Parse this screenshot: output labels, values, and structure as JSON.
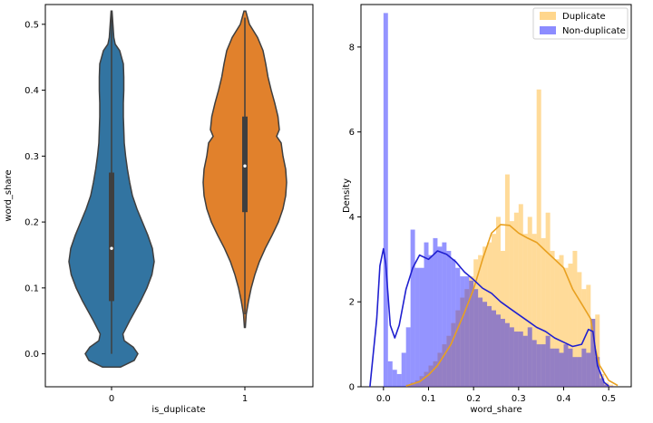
{
  "chart_data": [
    {
      "type": "violin",
      "xlabel": "is_duplicate",
      "ylabel": "word_share",
      "categories": [
        "0",
        "1"
      ],
      "ylim": [
        -0.05,
        0.53
      ],
      "yticks": [
        0.0,
        0.1,
        0.2,
        0.3,
        0.4,
        0.5
      ],
      "ytick_labels": [
        "0.0",
        "0.1",
        "0.2",
        "0.3",
        "0.4",
        "0.5"
      ],
      "series": [
        {
          "category": "0",
          "color": "#3274a1",
          "min": 0.0,
          "q1": 0.08,
          "median": 0.16,
          "q3": 0.275,
          "max": 0.52,
          "kde_range": [
            -0.02,
            0.52
          ],
          "profile": [
            [
              -0.02,
              0.2
            ],
            [
              -0.01,
              0.5
            ],
            [
              0.0,
              0.58
            ],
            [
              0.01,
              0.48
            ],
            [
              0.02,
              0.28
            ],
            [
              0.03,
              0.25
            ],
            [
              0.05,
              0.4
            ],
            [
              0.08,
              0.64
            ],
            [
              0.1,
              0.78
            ],
            [
              0.12,
              0.89
            ],
            [
              0.14,
              0.94
            ],
            [
              0.16,
              0.9
            ],
            [
              0.18,
              0.8
            ],
            [
              0.2,
              0.68
            ],
            [
              0.22,
              0.56
            ],
            [
              0.24,
              0.46
            ],
            [
              0.26,
              0.4
            ],
            [
              0.28,
              0.35
            ],
            [
              0.3,
              0.31
            ],
            [
              0.32,
              0.28
            ],
            [
              0.34,
              0.27
            ],
            [
              0.36,
              0.26
            ],
            [
              0.38,
              0.26
            ],
            [
              0.4,
              0.27
            ],
            [
              0.42,
              0.27
            ],
            [
              0.44,
              0.26
            ],
            [
              0.46,
              0.18
            ],
            [
              0.47,
              0.08
            ],
            [
              0.48,
              0.05
            ],
            [
              0.5,
              0.03
            ],
            [
              0.52,
              0.01
            ]
          ]
        },
        {
          "category": "1",
          "color": "#e1812c",
          "min": 0.06,
          "q1": 0.215,
          "median": 0.285,
          "q3": 0.36,
          "max": 0.51,
          "kde_range": [
            0.04,
            0.52
          ],
          "profile": [
            [
              0.04,
              0.01
            ],
            [
              0.06,
              0.03
            ],
            [
              0.08,
              0.08
            ],
            [
              0.1,
              0.14
            ],
            [
              0.12,
              0.22
            ],
            [
              0.14,
              0.32
            ],
            [
              0.16,
              0.45
            ],
            [
              0.18,
              0.6
            ],
            [
              0.2,
              0.74
            ],
            [
              0.22,
              0.84
            ],
            [
              0.24,
              0.9
            ],
            [
              0.26,
              0.92
            ],
            [
              0.28,
              0.9
            ],
            [
              0.3,
              0.84
            ],
            [
              0.32,
              0.8
            ],
            [
              0.33,
              0.7
            ],
            [
              0.34,
              0.76
            ],
            [
              0.36,
              0.73
            ],
            [
              0.38,
              0.66
            ],
            [
              0.4,
              0.58
            ],
            [
              0.42,
              0.51
            ],
            [
              0.44,
              0.46
            ],
            [
              0.46,
              0.4
            ],
            [
              0.48,
              0.28
            ],
            [
              0.5,
              0.1
            ],
            [
              0.52,
              0.02
            ]
          ]
        }
      ]
    },
    {
      "type": "histogram+kde",
      "xlabel": "word_share",
      "ylabel": "Density",
      "xlim": [
        -0.05,
        0.55
      ],
      "ylim": [
        0,
        9
      ],
      "xticks": [
        0.0,
        0.1,
        0.2,
        0.3,
        0.4,
        0.5
      ],
      "xtick_labels": [
        "0.0",
        "0.1",
        "0.2",
        "0.3",
        "0.4",
        "0.5"
      ],
      "yticks": [
        0,
        2,
        4,
        6,
        8
      ],
      "ytick_labels": [
        "0",
        "2",
        "4",
        "6",
        "8"
      ],
      "legend": {
        "position": "top-right",
        "entries": [
          "Duplicate",
          "Non-duplicate"
        ]
      },
      "bin_edges_start": 0.0,
      "bin_width": 0.01,
      "series": [
        {
          "name": "Duplicate",
          "color": "#ffa500",
          "histogram": [
            0,
            0,
            0,
            0,
            0,
            0.05,
            0.1,
            0.15,
            0.25,
            0.35,
            0.5,
            0.6,
            0.8,
            1.0,
            1.2,
            1.5,
            1.8,
            2.1,
            2.3,
            2.6,
            3.0,
            3.1,
            3.3,
            3.4,
            3.6,
            4.0,
            3.2,
            5.0,
            3.9,
            4.1,
            4.3,
            3.6,
            4.0,
            3.6,
            7.0,
            3.5,
            4.1,
            3.2,
            3.0,
            3.1,
            2.8,
            2.9,
            3.2,
            2.7,
            2.3,
            2.4,
            1.6,
            1.7,
            0.3,
            0.1,
            0.05
          ],
          "kde": [
            [
              0.05,
              0.02
            ],
            [
              0.08,
              0.12
            ],
            [
              0.1,
              0.28
            ],
            [
              0.12,
              0.5
            ],
            [
              0.15,
              1.0
            ],
            [
              0.18,
              1.75
            ],
            [
              0.2,
              2.3
            ],
            [
              0.22,
              3.0
            ],
            [
              0.24,
              3.62
            ],
            [
              0.26,
              3.82
            ],
            [
              0.28,
              3.8
            ],
            [
              0.3,
              3.62
            ],
            [
              0.32,
              3.5
            ],
            [
              0.34,
              3.4
            ],
            [
              0.36,
              3.2
            ],
            [
              0.38,
              3.0
            ],
            [
              0.4,
              2.8
            ],
            [
              0.42,
              2.3
            ],
            [
              0.44,
              1.95
            ],
            [
              0.46,
              1.6
            ],
            [
              0.47,
              0.9
            ],
            [
              0.48,
              0.5
            ],
            [
              0.5,
              0.15
            ],
            [
              0.52,
              0.03
            ]
          ]
        },
        {
          "name": "Non-duplicate",
          "color": "#0000ff",
          "histogram": [
            8.8,
            0.6,
            0.4,
            0.3,
            0.8,
            1.4,
            3.7,
            2.8,
            2.8,
            3.4,
            3.1,
            3.5,
            3.3,
            3.4,
            3.2,
            3.0,
            2.8,
            2.6,
            2.6,
            2.5,
            2.3,
            2.1,
            2.0,
            1.9,
            1.8,
            1.7,
            1.6,
            1.5,
            1.4,
            1.3,
            1.3,
            1.2,
            1.4,
            1.1,
            1.0,
            1.0,
            1.2,
            0.9,
            0.9,
            0.8,
            1.0,
            0.9,
            0.7,
            0.7,
            0.9,
            0.8,
            1.6,
            0.7,
            0.2,
            0.05,
            0.02
          ],
          "kde": [
            [
              -0.03,
              0.0
            ],
            [
              -0.015,
              1.6
            ],
            [
              -0.008,
              2.85
            ],
            [
              0.0,
              3.25
            ],
            [
              0.005,
              2.9
            ],
            [
              0.015,
              1.45
            ],
            [
              0.025,
              1.15
            ],
            [
              0.035,
              1.45
            ],
            [
              0.05,
              2.3
            ],
            [
              0.065,
              2.8
            ],
            [
              0.08,
              3.1
            ],
            [
              0.1,
              3.0
            ],
            [
              0.12,
              3.2
            ],
            [
              0.14,
              3.12
            ],
            [
              0.16,
              2.95
            ],
            [
              0.18,
              2.7
            ],
            [
              0.2,
              2.52
            ],
            [
              0.22,
              2.32
            ],
            [
              0.24,
              2.2
            ],
            [
              0.26,
              2.0
            ],
            [
              0.28,
              1.85
            ],
            [
              0.3,
              1.7
            ],
            [
              0.32,
              1.55
            ],
            [
              0.34,
              1.4
            ],
            [
              0.36,
              1.3
            ],
            [
              0.38,
              1.15
            ],
            [
              0.4,
              1.05
            ],
            [
              0.42,
              0.95
            ],
            [
              0.44,
              1.0
            ],
            [
              0.455,
              1.35
            ],
            [
              0.465,
              1.3
            ],
            [
              0.475,
              0.5
            ],
            [
              0.49,
              0.1
            ],
            [
              0.5,
              0.02
            ]
          ]
        }
      ]
    }
  ]
}
